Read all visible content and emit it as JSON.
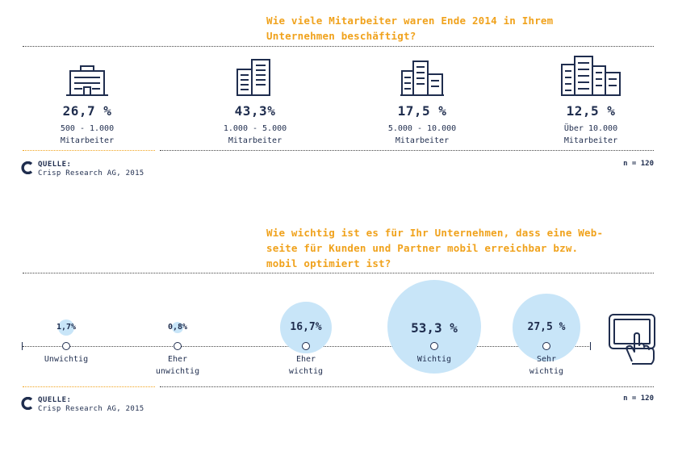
{
  "colors": {
    "accent": "#f0a21c",
    "navy": "#1f2d4e",
    "bubble": "#c8e5f8"
  },
  "top": {
    "question": "Wie viele Mitarbeiter waren Ende 2014 in Ihrem\nUnternehmen beschäftigt?",
    "source_title": "QUELLE:",
    "source_text": "Crisp Research AG, 2015",
    "n": "n = 120"
  },
  "bottom": {
    "question": "Wie wichtig ist es für Ihr Unternehmen, dass eine Web-\nseite für Kunden und Partner mobil erreichbar bzw.\nmobil optimiert ist?",
    "source_title": "QUELLE:",
    "source_text": "Crisp Research AG, 2015",
    "n": "n = 120"
  },
  "chart_data": [
    {
      "type": "table",
      "title": "Wie viele Mitarbeiter waren Ende 2014 in Ihrem Unternehmen beschäftigt?",
      "categories": [
        "500 - 1.000 Mitarbeiter",
        "1.000 - 5.000 Mitarbeiter",
        "5.000 - 10.000 Mitarbeiter",
        "Über 10.000 Mitarbeiter"
      ],
      "values": [
        26.7,
        43.3,
        17.5,
        12.5
      ],
      "labels": [
        "26,7 %",
        "43,3%",
        "17,5 %",
        "12,5 %"
      ],
      "category_labels": [
        "500 - 1.000\nMitarbeiter",
        "1.000 - 5.000\nMitarbeiter",
        "5.000 - 10.000\nMitarbeiter",
        "Über 10.000\nMitarbeiter"
      ],
      "icons": [
        "small-office-building-icon",
        "office-building-icon",
        "office-buildings-group-icon",
        "city-skyline-icon"
      ]
    },
    {
      "type": "scatter",
      "title": "Wie wichtig ist es für Ihr Unternehmen, dass eine Webseite für Kunden und Partner mobil erreichbar bzw. mobil optimiert ist?",
      "categories": [
        "Unwichtig",
        "Eher unwichtig",
        "Eher wichtig",
        "Wichtig",
        "Sehr wichtig"
      ],
      "values": [
        1.7,
        0.8,
        16.7,
        53.3,
        27.5
      ],
      "labels": [
        "1,7%",
        "0,8%",
        "16,7%",
        "53,3 %",
        "27,5 %"
      ],
      "category_labels": [
        "Unwichtig",
        "Eher\nunwichtig",
        "Eher\nwichtig",
        "Wichtig",
        "Sehr\nwichtig"
      ],
      "icons": [
        "tablet-touch-icon"
      ]
    }
  ]
}
